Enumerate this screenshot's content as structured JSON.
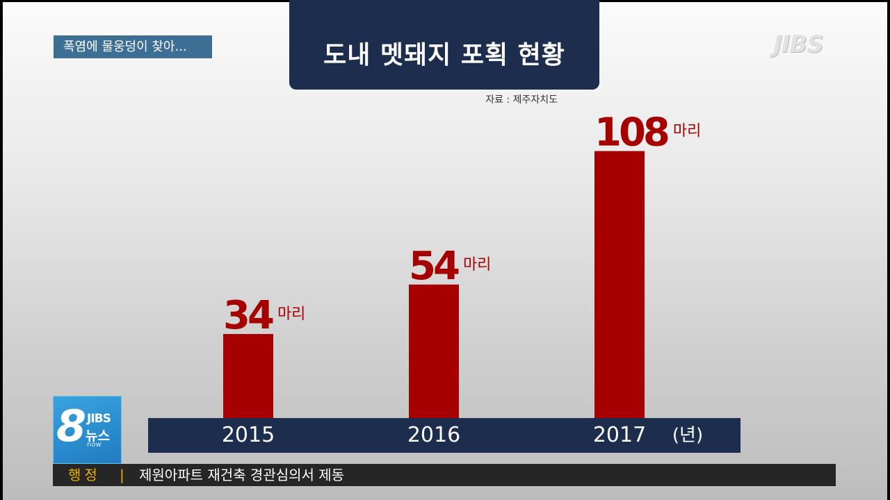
{
  "story_tag": "폭염에 물웅덩이 찾아...",
  "title": "도내 멧돼지 포획 현황",
  "source": "자료 : 제주자치도",
  "logo": "JIBS",
  "chart_data": {
    "type": "bar",
    "title": "도내 멧돼지 포획 현황",
    "categories": [
      "2015",
      "2016",
      "2017"
    ],
    "values": [
      34,
      54,
      108
    ],
    "value_labels": [
      "34",
      "54",
      "108"
    ],
    "unit": "마리",
    "x_unit": "(년)",
    "colors": {
      "bar": "#a60000",
      "axis_band": "#1d2d4e"
    },
    "grid": false
  },
  "badge": {
    "number": "8",
    "brand": "JIBS",
    "label": "뉴스",
    "sub": "now"
  },
  "ticker": {
    "category": "행정",
    "separator": "|",
    "headline": "제원아파트 재건축 경관심의서 제동"
  }
}
